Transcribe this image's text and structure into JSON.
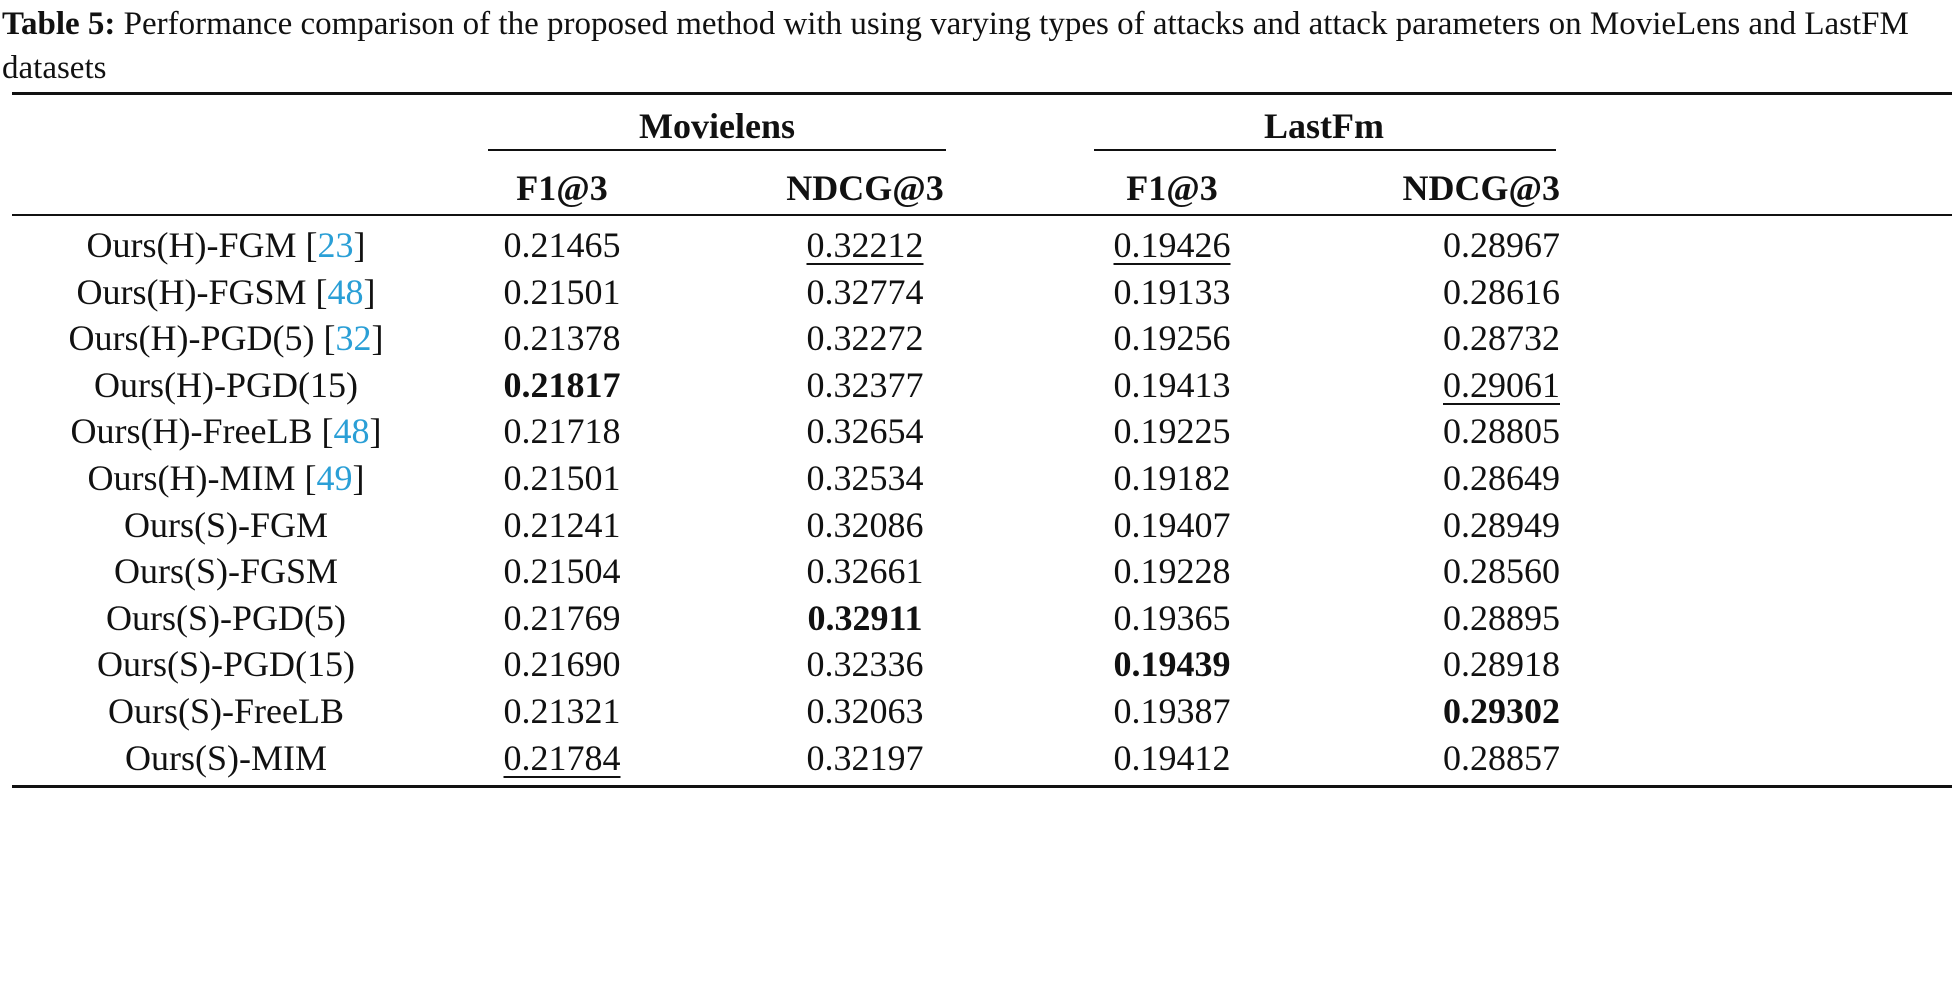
{
  "caption": {
    "label": "Table 5:",
    "text": " Performance comparison of the proposed method with using varying types of attacks and attack parameters on MovieLens and LastFM datasets"
  },
  "table": {
    "groups": [
      "Movielens",
      "LastFm"
    ],
    "columns": [
      "F1@3",
      "NDCG@3",
      "F1@3",
      "NDCG@3"
    ],
    "rows": [
      {
        "method": "Ours(H)-FGM",
        "cite": "23",
        "values": [
          "0.21465",
          "0.32212",
          "0.19426",
          "0.28967"
        ],
        "bold": [],
        "underline": [
          1,
          2
        ]
      },
      {
        "method": "Ours(H)-FGSM",
        "cite": "48",
        "values": [
          "0.21501",
          "0.32774",
          "0.19133",
          "0.28616"
        ],
        "bold": [],
        "underline": []
      },
      {
        "method": "Ours(H)-PGD(5)",
        "cite": "32",
        "values": [
          "0.21378",
          "0.32272",
          "0.19256",
          "0.28732"
        ],
        "bold": [],
        "underline": []
      },
      {
        "method": "Ours(H)-PGD(15)",
        "cite": "",
        "values": [
          "0.21817",
          "0.32377",
          "0.19413",
          "0.29061"
        ],
        "bold": [
          0
        ],
        "underline": [
          3
        ]
      },
      {
        "method": "Ours(H)-FreeLB",
        "cite": "48",
        "values": [
          "0.21718",
          "0.32654",
          "0.19225",
          "0.28805"
        ],
        "bold": [],
        "underline": []
      },
      {
        "method": "Ours(H)-MIM",
        "cite": "49",
        "values": [
          "0.21501",
          "0.32534",
          "0.19182",
          "0.28649"
        ],
        "bold": [],
        "underline": []
      },
      {
        "method": "Ours(S)-FGM",
        "cite": "",
        "values": [
          "0.21241",
          "0.32086",
          "0.19407",
          "0.28949"
        ],
        "bold": [],
        "underline": []
      },
      {
        "method": "Ours(S)-FGSM",
        "cite": "",
        "values": [
          "0.21504",
          "0.32661",
          "0.19228",
          "0.28560"
        ],
        "bold": [],
        "underline": []
      },
      {
        "method": "Ours(S)-PGD(5)",
        "cite": "",
        "values": [
          "0.21769",
          "0.32911",
          "0.19365",
          "0.28895"
        ],
        "bold": [
          1
        ],
        "underline": []
      },
      {
        "method": "Ours(S)-PGD(15)",
        "cite": "",
        "values": [
          "0.21690",
          "0.32336",
          "0.19439",
          "0.28918"
        ],
        "bold": [
          2
        ],
        "underline": []
      },
      {
        "method": "Ours(S)-FreeLB",
        "cite": "",
        "values": [
          "0.21321",
          "0.32063",
          "0.19387",
          "0.29302"
        ],
        "bold": [
          3
        ],
        "underline": []
      },
      {
        "method": "Ours(S)-MIM",
        "cite": "",
        "values": [
          "0.21784",
          "0.32197",
          "0.19412",
          "0.28857"
        ],
        "bold": [],
        "underline": [
          0
        ]
      }
    ]
  }
}
